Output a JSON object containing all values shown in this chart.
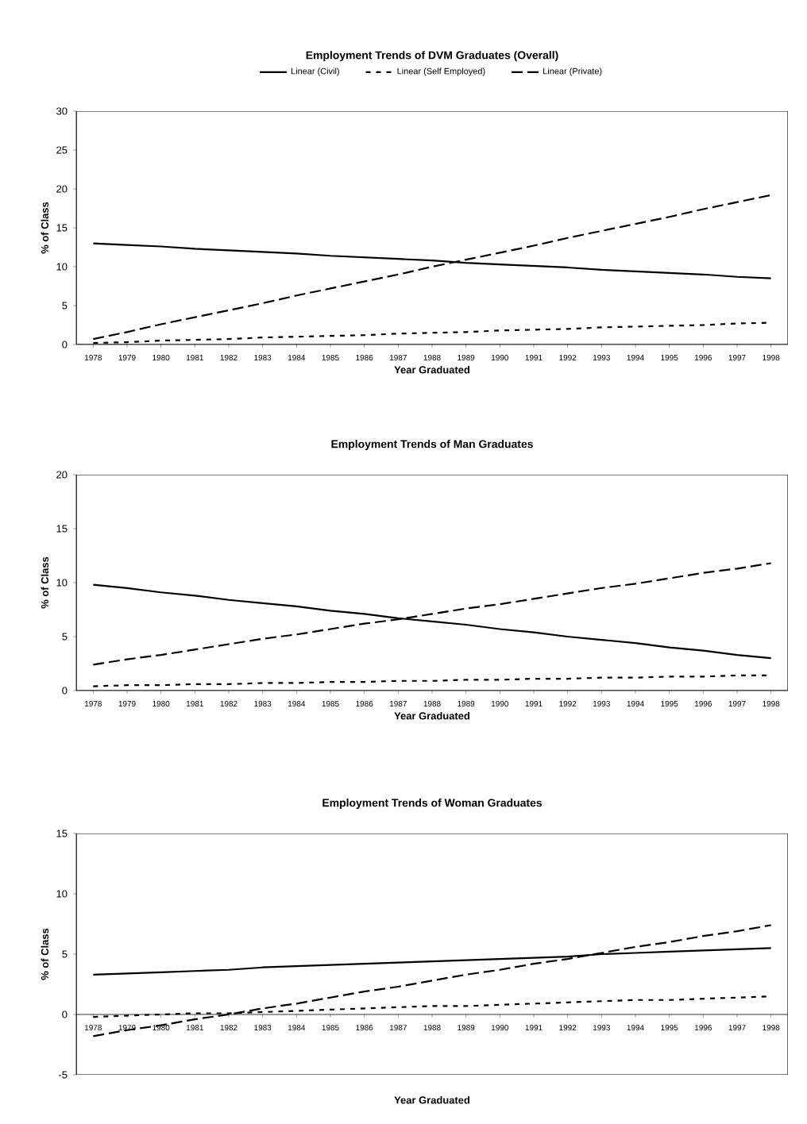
{
  "chart_data": [
    {
      "type": "line",
      "title": "Employment Trends of DVM Graduates (Overall)",
      "xlabel": "Year Graduated",
      "ylabel": "% of Class",
      "categories": [
        "1978",
        "1979",
        "1980",
        "1981",
        "1982",
        "1983",
        "1984",
        "1985",
        "1986",
        "1987",
        "1988",
        "1989",
        "1990",
        "1991",
        "1992",
        "1993",
        "1994",
        "1995",
        "1996",
        "1997",
        "1998"
      ],
      "ylim": [
        0,
        30
      ],
      "yticks": [
        0,
        5,
        10,
        15,
        20,
        25,
        30
      ],
      "grid": false,
      "legend": "top",
      "marker": "none",
      "series": [
        {
          "name": "Linear (Civil)",
          "color": "#000000",
          "line_style": "solid",
          "values": [
            13,
            12.8,
            12.6,
            12.3,
            12.1,
            11.9,
            11.7,
            11.4,
            11.2,
            11.0,
            10.8,
            10.5,
            10.3,
            10.1,
            9.9,
            9.6,
            9.4,
            9.2,
            9.0,
            8.7,
            8.5
          ]
        },
        {
          "name": "Linear (Self Employed)",
          "color": "#000000",
          "line_style": "dotted",
          "values": [
            0.2,
            0.3,
            0.5,
            0.6,
            0.7,
            0.9,
            1.0,
            1.1,
            1.2,
            1.4,
            1.5,
            1.6,
            1.8,
            1.9,
            2.0,
            2.2,
            2.3,
            2.4,
            2.5,
            2.7,
            2.8
          ]
        },
        {
          "name": "Linear (Private)",
          "color": "#000000",
          "line_style": "dashed",
          "values": [
            0.7,
            1.6,
            2.6,
            3.5,
            4.4,
            5.3,
            6.3,
            7.2,
            8.1,
            9.0,
            10.0,
            10.9,
            11.8,
            12.7,
            13.7,
            14.6,
            15.5,
            16.4,
            17.4,
            18.3,
            19.2
          ]
        }
      ]
    },
    {
      "type": "line",
      "title": "Employment Trends of Man Graduates",
      "xlabel": "Year Graduated",
      "ylabel": "% of Class",
      "categories": [
        "1978",
        "1979",
        "1980",
        "1981",
        "1982",
        "1983",
        "1984",
        "1985",
        "1986",
        "1987",
        "1988",
        "1989",
        "1990",
        "1991",
        "1992",
        "1993",
        "1994",
        "1995",
        "1996",
        "1997",
        "1998"
      ],
      "ylim": [
        0,
        20
      ],
      "yticks": [
        0,
        5,
        10,
        15,
        20
      ],
      "grid": false,
      "marker": "none",
      "series": [
        {
          "color": "#000000",
          "line_style": "solid",
          "values": [
            9.8,
            9.5,
            9.1,
            8.8,
            8.4,
            8.1,
            7.8,
            7.4,
            7.1,
            6.7,
            6.4,
            6.1,
            5.7,
            5.4,
            5.0,
            4.7,
            4.4,
            4.0,
            3.7,
            3.3,
            3.0
          ]
        },
        {
          "color": "#000000",
          "line_style": "dotted",
          "values": [
            0.4,
            0.5,
            0.5,
            0.6,
            0.6,
            0.7,
            0.7,
            0.8,
            0.8,
            0.9,
            0.9,
            1.0,
            1.0,
            1.1,
            1.1,
            1.2,
            1.2,
            1.3,
            1.3,
            1.4,
            1.4
          ]
        },
        {
          "color": "#000000",
          "line_style": "dashed",
          "values": [
            2.4,
            2.9,
            3.3,
            3.8,
            4.3,
            4.8,
            5.2,
            5.7,
            6.2,
            6.6,
            7.1,
            7.6,
            8.0,
            8.5,
            9.0,
            9.5,
            9.9,
            10.4,
            10.9,
            11.3,
            11.8
          ]
        }
      ]
    },
    {
      "type": "line",
      "title": "Employment Trends of Woman Graduates",
      "xlabel": "Year Graduated",
      "ylabel": "% of Class",
      "categories": [
        "1978",
        "1979",
        "1980",
        "1981",
        "1982",
        "1983",
        "1984",
        "1985",
        "1986",
        "1987",
        "1988",
        "1989",
        "1990",
        "1991",
        "1992",
        "1993",
        "1994",
        "1995",
        "1996",
        "1997",
        "1998"
      ],
      "ylim": [
        -5,
        15
      ],
      "yticks": [
        -5,
        0,
        5,
        10,
        15
      ],
      "grid": false,
      "marker": "none",
      "series": [
        {
          "color": "#000000",
          "line_style": "solid",
          "values": [
            3.3,
            3.4,
            3.5,
            3.6,
            3.7,
            3.9,
            4.0,
            4.1,
            4.2,
            4.3,
            4.4,
            4.5,
            4.6,
            4.7,
            4.8,
            5.0,
            5.1,
            5.2,
            5.3,
            5.4,
            5.5
          ]
        },
        {
          "color": "#000000",
          "line_style": "dotted",
          "values": [
            -0.2,
            -0.1,
            0.0,
            0.1,
            0.1,
            0.2,
            0.3,
            0.4,
            0.5,
            0.6,
            0.7,
            0.7,
            0.8,
            0.9,
            1.0,
            1.1,
            1.2,
            1.2,
            1.3,
            1.4,
            1.5
          ]
        },
        {
          "color": "#000000",
          "line_style": "dashed",
          "values": [
            -1.8,
            -1.3,
            -0.9,
            -0.4,
            0.0,
            0.5,
            0.9,
            1.4,
            1.9,
            2.3,
            2.8,
            3.3,
            3.7,
            4.2,
            4.6,
            5.1,
            5.6,
            6.0,
            6.5,
            6.9,
            7.4
          ]
        }
      ]
    }
  ]
}
